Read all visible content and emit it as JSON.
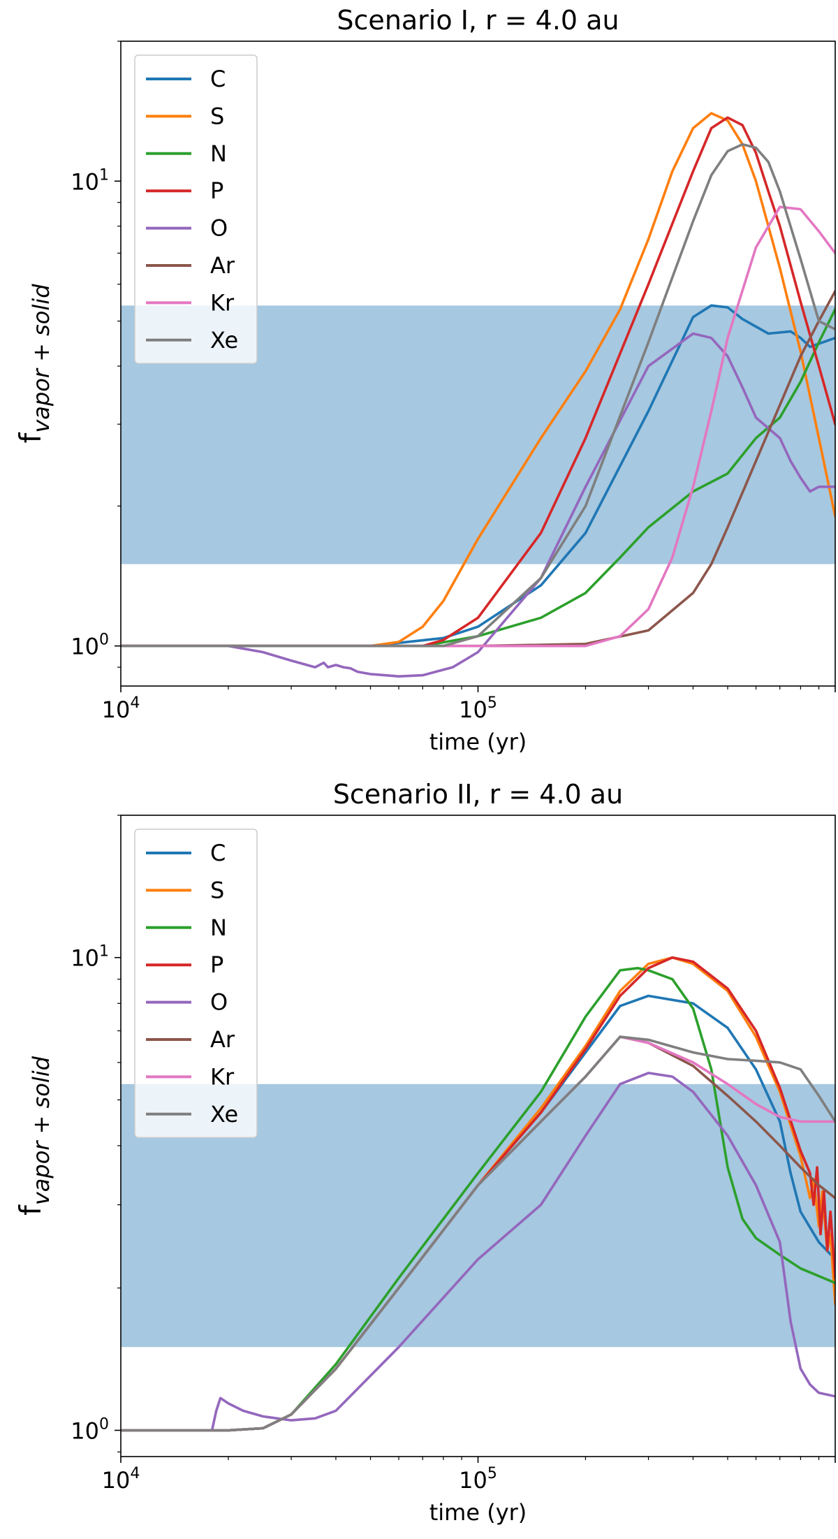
{
  "chart_data": [
    {
      "type": "line",
      "title": "Scenario I, r = 4.0 au",
      "xlabel": "time (yr)",
      "ylabel": {
        "base": "f",
        "subscript": "vapor + solid"
      },
      "xscale": "log",
      "yscale": "log",
      "xlim": [
        10000,
        1000000
      ],
      "ylim": [
        0.82,
        20
      ],
      "x_ticks": [
        {
          "value": 10000,
          "base": "10",
          "exp": "4"
        },
        {
          "value": 100000,
          "base": "10",
          "exp": "5"
        }
      ],
      "y_ticks": [
        {
          "value": 1,
          "base": "10",
          "exp": "0"
        },
        {
          "value": 10,
          "base": "10",
          "exp": "1"
        }
      ],
      "shaded_band": {
        "y0": 1.5,
        "y1": 5.4,
        "color": "#a6c8e0"
      },
      "legend_position": "upper left",
      "series": [
        {
          "name": "C",
          "color": "#1f77b4",
          "x": [
            10000,
            50000,
            80000,
            100000,
            150000,
            200000,
            300000,
            400000,
            450000,
            500000,
            550000,
            650000,
            750000,
            800000,
            850000,
            1000000
          ],
          "y": [
            1,
            1,
            1.04,
            1.1,
            1.35,
            1.75,
            3.2,
            5.1,
            5.4,
            5.35,
            5.05,
            4.7,
            4.75,
            4.6,
            4.4,
            4.6
          ]
        },
        {
          "name": "S",
          "color": "#ff7f0e",
          "x": [
            10000,
            50000,
            60000,
            70000,
            80000,
            100000,
            150000,
            200000,
            250000,
            300000,
            350000,
            400000,
            450000,
            500000,
            550000,
            600000,
            650000,
            700000,
            800000,
            900000,
            1000000
          ],
          "y": [
            1,
            1,
            1.02,
            1.1,
            1.25,
            1.7,
            2.8,
            3.9,
            5.3,
            7.5,
            10.5,
            13,
            14,
            13.5,
            12,
            10,
            8,
            6.5,
            4.3,
            2.8,
            1.9
          ]
        },
        {
          "name": "N",
          "color": "#2ca02c",
          "x": [
            10000,
            70000,
            100000,
            150000,
            200000,
            250000,
            300000,
            400000,
            500000,
            600000,
            700000,
            800000,
            900000,
            1000000
          ],
          "y": [
            1,
            1,
            1.05,
            1.15,
            1.3,
            1.55,
            1.8,
            2.15,
            2.35,
            2.8,
            3.1,
            3.7,
            4.5,
            5.3
          ]
        },
        {
          "name": "P",
          "color": "#d62728",
          "x": [
            10000,
            70000,
            80000,
            100000,
            150000,
            200000,
            300000,
            400000,
            450000,
            500000,
            550000,
            600000,
            650000,
            700000,
            800000,
            900000,
            1000000
          ],
          "y": [
            1,
            1,
            1.03,
            1.15,
            1.75,
            2.8,
            6,
            10.5,
            13,
            13.7,
            13.2,
            11.5,
            9.5,
            8,
            5.5,
            4,
            3
          ]
        },
        {
          "name": "O",
          "color": "#9467bd",
          "x": [
            10000,
            20000,
            25000,
            30000,
            35000,
            37000,
            38000,
            40000,
            42000,
            44000,
            46000,
            50000,
            55000,
            60000,
            70000,
            85000,
            100000,
            150000,
            200000,
            300000,
            400000,
            450000,
            500000,
            550000,
            600000,
            700000,
            750000,
            800000,
            850000,
            900000,
            1000000
          ],
          "y": [
            1,
            1,
            0.97,
            0.93,
            0.9,
            0.92,
            0.9,
            0.91,
            0.9,
            0.895,
            0.88,
            0.87,
            0.865,
            0.86,
            0.865,
            0.9,
            0.97,
            1.4,
            2.2,
            4,
            4.7,
            4.6,
            4.2,
            3.6,
            3.1,
            2.8,
            2.5,
            2.3,
            2.15,
            2.2,
            2.2
          ]
        },
        {
          "name": "Ar",
          "color": "#8c564b",
          "x": [
            10000,
            100000,
            200000,
            300000,
            400000,
            450000,
            500000,
            600000,
            700000,
            800000,
            900000,
            1000000
          ],
          "y": [
            1,
            1,
            1.01,
            1.08,
            1.3,
            1.5,
            1.8,
            2.5,
            3.3,
            4.2,
            5,
            5.8
          ]
        },
        {
          "name": "Kr",
          "color": "#e377c2",
          "x": [
            10000,
            200000,
            250000,
            300000,
            350000,
            400000,
            450000,
            500000,
            600000,
            700000,
            800000,
            900000,
            1000000
          ],
          "y": [
            1,
            1,
            1.05,
            1.2,
            1.55,
            2.2,
            3.2,
            4.6,
            7.2,
            8.8,
            8.7,
            7.8,
            7
          ]
        },
        {
          "name": "Xe",
          "color": "#7f7f7f",
          "x": [
            10000,
            80000,
            100000,
            150000,
            200000,
            300000,
            400000,
            450000,
            500000,
            550000,
            600000,
            650000,
            700000,
            800000,
            900000,
            1000000
          ],
          "y": [
            1,
            1,
            1.05,
            1.4,
            2,
            4.5,
            8.2,
            10.3,
            11.6,
            12,
            11.8,
            11,
            9.5,
            6.8,
            5,
            4.8
          ]
        }
      ]
    },
    {
      "type": "line",
      "title": "Scenario II, r = 4.0 au",
      "xlabel": "time (yr)",
      "ylabel": {
        "base": "f",
        "subscript": "vapor + solid"
      },
      "xscale": "log",
      "yscale": "log",
      "xlim": [
        10000,
        1000000
      ],
      "ylim": [
        0.88,
        20
      ],
      "x_ticks": [
        {
          "value": 10000,
          "base": "10",
          "exp": "4"
        },
        {
          "value": 100000,
          "base": "10",
          "exp": "5"
        }
      ],
      "y_ticks": [
        {
          "value": 1,
          "base": "10",
          "exp": "0"
        },
        {
          "value": 10,
          "base": "10",
          "exp": "1"
        }
      ],
      "shaded_band": {
        "y0": 1.5,
        "y1": 5.4,
        "color": "#a6c8e0"
      },
      "legend_position": "upper left",
      "series": [
        {
          "name": "C",
          "color": "#1f77b4",
          "x": [
            10000,
            20000,
            25000,
            30000,
            40000,
            60000,
            100000,
            150000,
            200000,
            250000,
            300000,
            400000,
            500000,
            600000,
            700000,
            750000,
            800000,
            900000,
            1000000
          ],
          "y": [
            1,
            1,
            1.01,
            1.08,
            1.35,
            2,
            3.3,
            4.7,
            6.3,
            7.9,
            8.3,
            8,
            7.1,
            5.8,
            4.5,
            3.5,
            2.9,
            2.5,
            2.3
          ]
        },
        {
          "name": "S",
          "color": "#ff7f0e",
          "x": [
            10000,
            20000,
            25000,
            30000,
            40000,
            60000,
            100000,
            150000,
            200000,
            250000,
            300000,
            350000,
            400000,
            500000,
            600000,
            700000,
            800000,
            850000,
            870000,
            900000,
            920000,
            950000,
            970000,
            1000000
          ],
          "y": [
            1,
            1,
            1.01,
            1.08,
            1.35,
            2,
            3.3,
            4.8,
            6.5,
            8.5,
            9.7,
            10,
            9.7,
            8.5,
            6.8,
            5.2,
            3.8,
            3.1,
            3.4,
            2.7,
            3.2,
            2.4,
            2.6,
            1.85
          ]
        },
        {
          "name": "N",
          "color": "#2ca02c",
          "x": [
            10000,
            20000,
            25000,
            30000,
            40000,
            60000,
            100000,
            150000,
            200000,
            250000,
            280000,
            300000,
            350000,
            400000,
            450000,
            500000,
            550000,
            600000,
            700000,
            800000,
            1000000
          ],
          "y": [
            1,
            1,
            1.01,
            1.08,
            1.38,
            2.1,
            3.5,
            5.2,
            7.5,
            9.4,
            9.5,
            9.4,
            9,
            7.8,
            5.8,
            3.6,
            2.8,
            2.55,
            2.35,
            2.2,
            2.05
          ]
        },
        {
          "name": "P",
          "color": "#d62728",
          "x": [
            10000,
            20000,
            25000,
            30000,
            40000,
            60000,
            100000,
            150000,
            200000,
            250000,
            300000,
            350000,
            400000,
            500000,
            600000,
            700000,
            800000,
            850000,
            870000,
            890000,
            910000,
            930000,
            950000,
            970000,
            1000000
          ],
          "y": [
            1,
            1,
            1.01,
            1.08,
            1.35,
            2,
            3.3,
            4.7,
            6.4,
            8.3,
            9.5,
            10,
            9.8,
            8.6,
            7,
            5.3,
            3.9,
            3.5,
            3,
            3.6,
            2.6,
            3.2,
            2.4,
            2.9,
            2.1
          ]
        },
        {
          "name": "O",
          "color": "#9467bd",
          "x": [
            10000,
            18000,
            18500,
            19000,
            20000,
            22000,
            25000,
            30000,
            35000,
            40000,
            60000,
            100000,
            150000,
            200000,
            250000,
            300000,
            350000,
            400000,
            500000,
            600000,
            700000,
            750000,
            800000,
            850000,
            900000,
            1000000
          ],
          "y": [
            1,
            1,
            1.1,
            1.17,
            1.14,
            1.1,
            1.07,
            1.05,
            1.06,
            1.1,
            1.5,
            2.3,
            3,
            4.2,
            5.4,
            5.7,
            5.6,
            5.2,
            4.2,
            3.3,
            2.5,
            1.7,
            1.35,
            1.25,
            1.2,
            1.18
          ]
        },
        {
          "name": "Ar",
          "color": "#8c564b",
          "x": [
            10000,
            20000,
            25000,
            30000,
            40000,
            60000,
            100000,
            150000,
            200000,
            250000,
            300000,
            400000,
            500000,
            600000,
            700000,
            800000,
            900000,
            1000000
          ],
          "y": [
            1,
            1,
            1.01,
            1.08,
            1.35,
            2,
            3.3,
            4.5,
            5.6,
            6.8,
            6.6,
            5.9,
            5.1,
            4.5,
            4,
            3.6,
            3.3,
            3.1
          ]
        },
        {
          "name": "Kr",
          "color": "#e377c2",
          "x": [
            10000,
            20000,
            25000,
            30000,
            40000,
            60000,
            100000,
            150000,
            200000,
            250000,
            300000,
            400000,
            500000,
            600000,
            700000,
            800000,
            900000,
            1000000
          ],
          "y": [
            1,
            1,
            1.01,
            1.08,
            1.35,
            2,
            3.3,
            4.5,
            5.6,
            6.8,
            6.6,
            6,
            5.4,
            4.9,
            4.6,
            4.5,
            4.5,
            4.5
          ]
        },
        {
          "name": "Xe",
          "color": "#7f7f7f",
          "x": [
            10000,
            20000,
            25000,
            30000,
            40000,
            60000,
            100000,
            150000,
            200000,
            250000,
            300000,
            400000,
            500000,
            600000,
            700000,
            800000,
            900000,
            1000000
          ],
          "y": [
            1,
            1,
            1.01,
            1.08,
            1.35,
            2,
            3.3,
            4.5,
            5.6,
            6.8,
            6.7,
            6.3,
            6.1,
            6.05,
            6,
            5.8,
            5.1,
            4.5
          ]
        }
      ]
    }
  ]
}
